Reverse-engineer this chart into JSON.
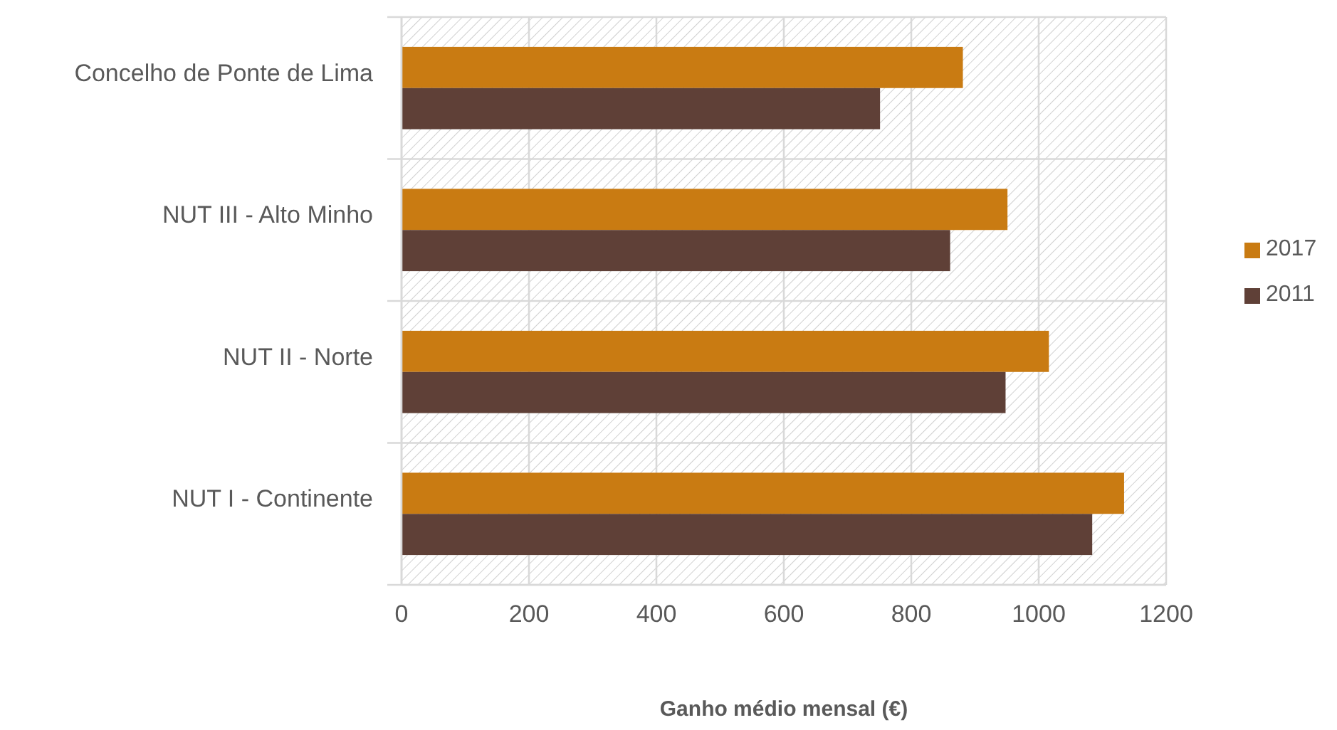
{
  "chart_data": {
    "type": "bar",
    "orientation": "horizontal",
    "xlabel": "Ganho médio mensal (€)",
    "categories": [
      "Concelho de Ponte de Lima",
      "NUT III - Alto Minho",
      "NUT II - Norte",
      "NUT I - Continente"
    ],
    "series": [
      {
        "name": "2017",
        "color": "#c97b12",
        "values": [
          881,
          951,
          1016,
          1134
        ]
      },
      {
        "name": "2011",
        "color": "#5f4037",
        "values": [
          751,
          861,
          948,
          1084
        ]
      }
    ],
    "xlim": [
      0,
      1200
    ],
    "xticks": [
      0,
      200,
      400,
      600,
      800,
      1000,
      1200
    ],
    "grid": true,
    "legend": "right"
  }
}
